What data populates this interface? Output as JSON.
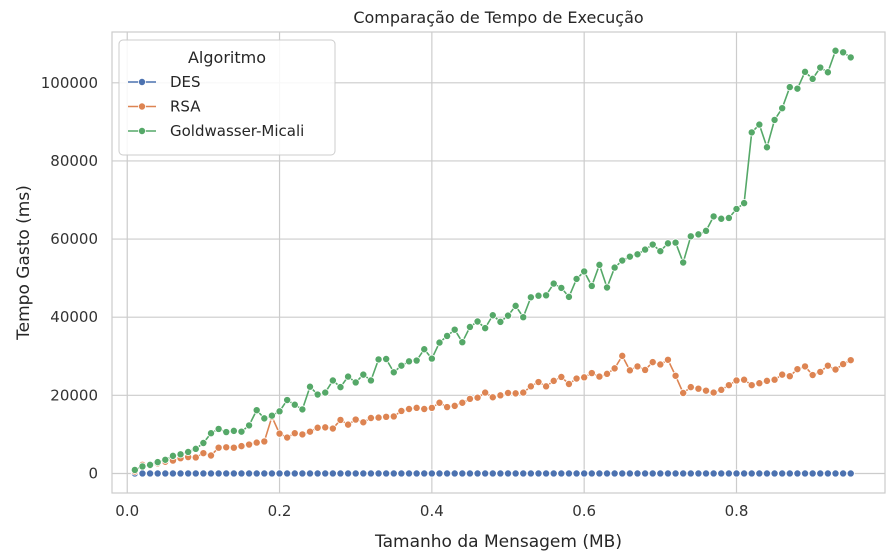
{
  "chart_data": {
    "type": "line",
    "title": "Comparação de Tempo de Execução",
    "xlabel": "Tamanho da Mensagem (MB)",
    "ylabel": "Tempo Gasto (ms)",
    "xlim": [
      -0.02,
      0.995
    ],
    "ylim": [
      -5000,
      113000
    ],
    "xticks": [
      0.0,
      0.2,
      0.4,
      0.6,
      0.8
    ],
    "xtick_labels": [
      "0.0",
      "0.2",
      "0.4",
      "0.6",
      "0.8"
    ],
    "yticks": [
      0,
      20000,
      40000,
      60000,
      80000,
      100000
    ],
    "ytick_labels": [
      "0",
      "20000",
      "40000",
      "60000",
      "80000",
      "100000"
    ],
    "grid": true,
    "legend": {
      "title": "Algoritmo",
      "placement": "top-left"
    },
    "x": [
      0.01,
      0.02,
      0.03,
      0.04,
      0.05,
      0.06,
      0.07,
      0.08,
      0.09,
      0.1,
      0.11,
      0.12,
      0.13,
      0.14,
      0.15,
      0.16,
      0.17,
      0.18,
      0.19,
      0.2,
      0.21,
      0.22,
      0.23,
      0.24,
      0.25,
      0.26,
      0.27,
      0.28,
      0.29,
      0.3,
      0.31,
      0.32,
      0.33,
      0.34,
      0.35,
      0.36,
      0.37,
      0.38,
      0.39,
      0.4,
      0.41,
      0.42,
      0.43,
      0.44,
      0.45,
      0.46,
      0.47,
      0.48,
      0.49,
      0.5,
      0.51,
      0.52,
      0.53,
      0.54,
      0.55,
      0.56,
      0.57,
      0.58,
      0.59,
      0.6,
      0.61,
      0.62,
      0.63,
      0.64,
      0.65,
      0.66,
      0.67,
      0.68,
      0.69,
      0.7,
      0.71,
      0.72,
      0.73,
      0.74,
      0.75,
      0.76,
      0.77,
      0.78,
      0.79,
      0.8,
      0.81,
      0.82,
      0.83,
      0.84,
      0.85,
      0.86,
      0.87,
      0.88,
      0.89,
      0.9,
      0.91,
      0.92,
      0.93,
      0.94,
      0.95
    ],
    "series": [
      {
        "name": "DES",
        "color": "#4c72b0",
        "values": [
          0,
          0,
          0,
          0,
          0,
          0,
          0,
          0,
          0,
          0,
          0,
          0,
          0,
          0,
          0,
          0,
          0,
          0,
          0,
          0,
          0,
          0,
          0,
          0,
          0,
          0,
          0,
          0,
          0,
          0,
          0,
          0,
          0,
          0,
          0,
          0,
          0,
          0,
          0,
          0,
          0,
          0,
          0,
          0,
          0,
          0,
          0,
          0,
          0,
          0,
          0,
          0,
          0,
          0,
          0,
          0,
          0,
          0,
          0,
          0,
          0,
          0,
          0,
          0,
          0,
          0,
          0,
          0,
          0,
          0,
          0,
          0,
          0,
          0,
          0,
          0,
          0,
          0,
          0,
          0,
          0,
          0,
          0,
          0,
          0,
          0,
          0,
          0,
          0,
          0,
          0,
          0,
          0,
          0,
          0
        ]
      },
      {
        "name": "RSA",
        "color": "#dd8452",
        "values": [
          500,
          2200,
          2000,
          2600,
          3000,
          3300,
          3900,
          4200,
          4100,
          5200,
          4600,
          6600,
          6700,
          6600,
          7000,
          7400,
          7900,
          8200,
          14500,
          10200,
          9200,
          10300,
          10000,
          10700,
          11700,
          11800,
          11500,
          13700,
          12500,
          13800,
          13100,
          14200,
          14300,
          14500,
          14600,
          16000,
          16500,
          16800,
          16500,
          16800,
          18100,
          17000,
          17300,
          18100,
          19100,
          19400,
          20700,
          19500,
          20000,
          20600,
          20500,
          20700,
          22300,
          23400,
          22300,
          23700,
          24700,
          22900,
          24300,
          24600,
          25700,
          24800,
          25500,
          26900,
          30100,
          26400,
          27400,
          26500,
          28500,
          27900,
          29100,
          25000,
          20600,
          22100,
          21700,
          21200,
          20700,
          21400,
          22600,
          23800,
          24000,
          22600,
          23100,
          23700,
          24000,
          25300,
          24900,
          26700,
          27400,
          25200,
          26000,
          27600,
          26600,
          28000,
          29000
        ]
      },
      {
        "name": "Goldwasser-Micali",
        "color": "#55a868",
        "values": [
          900,
          1800,
          2200,
          2900,
          3500,
          4500,
          4900,
          5500,
          6300,
          7800,
          10300,
          11400,
          10600,
          10900,
          10700,
          12300,
          16200,
          14100,
          14800,
          15900,
          18800,
          17600,
          16400,
          22200,
          20200,
          20700,
          23800,
          22100,
          24800,
          23300,
          25300,
          23800,
          29200,
          29300,
          25900,
          27600,
          28700,
          28900,
          31800,
          29400,
          33500,
          35200,
          36800,
          33600,
          37500,
          38900,
          37200,
          40500,
          38800,
          40400,
          42900,
          40000,
          45100,
          45500,
          45600,
          48600,
          47500,
          45200,
          49800,
          51700,
          48000,
          53400,
          47600,
          52700,
          54500,
          55500,
          56100,
          57300,
          58600,
          56900,
          58900,
          59100,
          54000,
          60700,
          61200,
          62100,
          65800,
          65200,
          65400,
          67700,
          69200,
          87300,
          89300,
          83500,
          90500,
          93500,
          98900,
          98500,
          102800,
          101000,
          103900,
          102700,
          108200,
          107800,
          106500
        ]
      }
    ]
  }
}
